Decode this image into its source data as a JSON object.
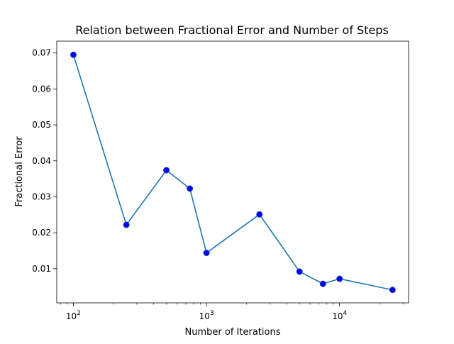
{
  "chart_data": {
    "type": "line",
    "title": "Relation between Fractional Error and Number of Steps",
    "xlabel": "Number of Iterations",
    "ylabel": "Fractional Error",
    "xscale": "log",
    "xlim": [
      75,
      33000
    ],
    "ylim": [
      0.0005,
      0.0733
    ],
    "grid": false,
    "x_ticks": [
      {
        "value": 100,
        "base": "10",
        "exp": "2"
      },
      {
        "value": 1000,
        "base": "10",
        "exp": "3"
      },
      {
        "value": 10000,
        "base": "10",
        "exp": "4"
      }
    ],
    "y_ticks": [
      {
        "value": 0.01,
        "label": "0.01"
      },
      {
        "value": 0.02,
        "label": "0.02"
      },
      {
        "value": 0.03,
        "label": "0.03"
      },
      {
        "value": 0.04,
        "label": "0.04"
      },
      {
        "value": 0.05,
        "label": "0.05"
      },
      {
        "value": 0.06,
        "label": "0.06"
      },
      {
        "value": 0.07,
        "label": "0.07"
      }
    ],
    "series": [
      {
        "x": [
          100,
          250,
          500,
          750,
          1000,
          2500,
          5000,
          7500,
          10000,
          25000
        ],
        "y": [
          0.0695,
          0.0222,
          0.0374,
          0.0323,
          0.0144,
          0.0251,
          0.0092,
          0.0058,
          0.0072,
          0.0041
        ],
        "line_color": "#1f77b4",
        "marker_color": "#0000ff",
        "marker_edge_color": "#1f3fa0"
      }
    ]
  }
}
